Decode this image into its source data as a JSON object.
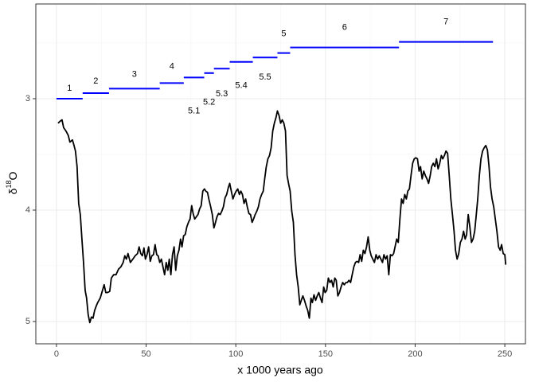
{
  "chart_data": {
    "type": "line",
    "x_label": "x 1000 years ago",
    "y_label": [
      "δ",
      "18",
      "O"
    ],
    "color": "#000000",
    "xlim": [
      -11.5,
      261.5
    ],
    "xticks": [
      0,
      50,
      100,
      150,
      200,
      250
    ],
    "ylim": [
      2.15,
      5.2
    ],
    "yticks": [
      3,
      4,
      5
    ],
    "y_reverse": true,
    "grid": true,
    "x": [
      0.9,
      2.2,
      3.1,
      4.0,
      5.3,
      6.6,
      7.5,
      8.9,
      9.8,
      10.6,
      11.5,
      12.4,
      13.3,
      14.2,
      15.1,
      16.0,
      16.8,
      17.7,
      18.6,
      19.5,
      20.4,
      21.3,
      22.2,
      23.0,
      24.4,
      25.7,
      26.6,
      27.5,
      28.4,
      29.7,
      30.6,
      31.9,
      33.2,
      34.6,
      35.9,
      37.2,
      38.1,
      39.0,
      39.9,
      41.2,
      42.6,
      43.9,
      45.2,
      46.1,
      47.0,
      47.9,
      48.8,
      49.6,
      50.5,
      51.4,
      52.3,
      53.2,
      54.1,
      55.0,
      55.9,
      56.7,
      57.6,
      58.5,
      59.4,
      60.3,
      61.2,
      62.1,
      62.9,
      63.8,
      64.7,
      65.6,
      66.5,
      67.4,
      68.3,
      69.2,
      70.0,
      70.9,
      71.8,
      72.7,
      73.6,
      74.5,
      75.4,
      76.2,
      77.1,
      78.0,
      78.9,
      79.8,
      80.7,
      81.6,
      82.5,
      83.3,
      84.2,
      85.1,
      86.0,
      86.9,
      87.8,
      88.7,
      89.5,
      90.4,
      91.3,
      92.2,
      93.1,
      94.0,
      94.9,
      95.8,
      96.6,
      97.5,
      98.4,
      99.3,
      100.2,
      101.1,
      102.0,
      102.8,
      103.7,
      104.6,
      105.5,
      106.4,
      107.3,
      108.2,
      109.1,
      109.9,
      110.8,
      111.7,
      112.6,
      113.5,
      114.4,
      115.3,
      116.1,
      117.0,
      117.9,
      118.8,
      119.7,
      120.6,
      121.5,
      122.4,
      123.2,
      124.1,
      125.0,
      125.9,
      126.8,
      127.7,
      128.6,
      129.4,
      130.3,
      131.2,
      132.1,
      133.0,
      133.9,
      134.8,
      135.7,
      136.5,
      137.4,
      138.3,
      139.2,
      140.1,
      141.0,
      141.9,
      142.7,
      143.6,
      144.5,
      145.4,
      146.3,
      147.2,
      148.1,
      149.0,
      149.8,
      150.7,
      151.6,
      152.5,
      153.4,
      154.3,
      155.2,
      156.0,
      156.9,
      157.8,
      158.7,
      159.6,
      160.5,
      161.4,
      162.2,
      163.1,
      164.0,
      164.9,
      165.8,
      166.7,
      167.6,
      168.5,
      169.3,
      170.2,
      171.1,
      172.0,
      172.9,
      173.8,
      174.7,
      175.5,
      176.4,
      177.3,
      178.2,
      179.1,
      180.0,
      180.9,
      181.8,
      182.6,
      183.5,
      184.4,
      185.3,
      186.2,
      187.1,
      188.0,
      188.8,
      189.7,
      190.6,
      191.5,
      192.4,
      193.3,
      194.2,
      195.1,
      195.9,
      196.8,
      197.7,
      198.6,
      199.5,
      200.4,
      201.3,
      202.2,
      203.0,
      203.9,
      204.8,
      205.7,
      206.6,
      207.5,
      208.4,
      209.2,
      210.1,
      211.0,
      211.9,
      212.8,
      213.7,
      214.6,
      215.4,
      216.3,
      217.2,
      218.1,
      219.0,
      219.9,
      220.8,
      221.7,
      222.5,
      223.4,
      224.3,
      225.2,
      226.1,
      227.0,
      227.9,
      228.7,
      229.6,
      230.5,
      231.4,
      232.3,
      233.2,
      234.1,
      234.9,
      235.8,
      236.7,
      237.6,
      238.5,
      239.4,
      240.3,
      241.2,
      242.0,
      242.9,
      243.8,
      244.7,
      245.6,
      246.5,
      247.4,
      248.2,
      249.1,
      250.0,
      250.5
    ],
    "values": [
      3.22,
      3.2,
      3.19,
      3.26,
      3.29,
      3.33,
      3.39,
      3.37,
      3.42,
      3.47,
      3.61,
      3.94,
      4.04,
      4.26,
      4.47,
      4.72,
      4.79,
      4.94,
      5.01,
      4.96,
      4.97,
      4.9,
      4.86,
      4.83,
      4.79,
      4.72,
      4.67,
      4.74,
      4.74,
      4.73,
      4.61,
      4.58,
      4.58,
      4.53,
      4.51,
      4.47,
      4.41,
      4.44,
      4.39,
      4.47,
      4.44,
      4.41,
      4.39,
      4.33,
      4.39,
      4.41,
      4.34,
      4.44,
      4.4,
      4.33,
      4.46,
      4.41,
      4.4,
      4.31,
      4.4,
      4.41,
      4.47,
      4.44,
      4.51,
      4.58,
      4.47,
      4.54,
      4.44,
      4.58,
      4.4,
      4.33,
      4.54,
      4.41,
      4.36,
      4.26,
      4.33,
      4.23,
      4.22,
      4.15,
      4.11,
      4.08,
      3.96,
      4.03,
      4.08,
      4.06,
      4.04,
      3.99,
      3.96,
      3.83,
      3.81,
      3.83,
      3.84,
      3.91,
      3.97,
      4.04,
      4.16,
      4.11,
      4.06,
      4.03,
      4.04,
      4.01,
      3.97,
      3.89,
      3.86,
      3.8,
      3.76,
      3.83,
      3.9,
      3.86,
      3.83,
      3.81,
      3.86,
      3.83,
      3.86,
      3.94,
      3.9,
      3.97,
      4.03,
      4.04,
      4.11,
      4.08,
      4.04,
      4.01,
      3.97,
      3.9,
      3.86,
      3.83,
      3.72,
      3.61,
      3.54,
      3.51,
      3.44,
      3.29,
      3.22,
      3.17,
      3.11,
      3.15,
      3.22,
      3.19,
      3.22,
      3.29,
      3.69,
      3.76,
      3.83,
      4.01,
      4.11,
      4.4,
      4.58,
      4.69,
      4.85,
      4.81,
      4.77,
      4.81,
      4.86,
      4.9,
      4.97,
      4.79,
      4.83,
      4.76,
      4.81,
      4.77,
      4.74,
      4.79,
      4.83,
      4.69,
      4.74,
      4.72,
      4.61,
      4.65,
      4.63,
      4.69,
      4.61,
      4.63,
      4.77,
      4.74,
      4.69,
      4.65,
      4.67,
      4.65,
      4.65,
      4.63,
      4.65,
      4.58,
      4.51,
      4.47,
      4.46,
      4.47,
      4.4,
      4.46,
      4.36,
      4.39,
      4.33,
      4.24,
      4.36,
      4.41,
      4.44,
      4.47,
      4.4,
      4.44,
      4.41,
      4.44,
      4.47,
      4.4,
      4.44,
      4.41,
      4.58,
      4.4,
      4.41,
      4.39,
      4.33,
      4.26,
      4.29,
      4.08,
      3.9,
      3.94,
      3.86,
      3.9,
      3.83,
      3.81,
      3.69,
      3.58,
      3.54,
      3.53,
      3.54,
      3.65,
      3.61,
      3.72,
      3.65,
      3.69,
      3.72,
      3.76,
      3.69,
      3.61,
      3.58,
      3.61,
      3.54,
      3.63,
      3.58,
      3.51,
      3.54,
      3.51,
      3.47,
      3.49,
      3.69,
      3.9,
      4.04,
      4.19,
      4.36,
      4.44,
      4.39,
      4.29,
      4.26,
      4.19,
      4.26,
      4.22,
      4.04,
      4.15,
      4.29,
      4.26,
      4.19,
      4.04,
      3.9,
      3.69,
      3.54,
      3.47,
      3.44,
      3.42,
      3.46,
      3.61,
      3.79,
      3.9,
      3.97,
      4.08,
      4.19,
      4.33,
      4.36,
      4.31,
      4.39,
      4.4,
      4.49
    ],
    "stage_color": "#0000ff",
    "stages": [
      {
        "label": "1",
        "start": 0,
        "end": 14.6,
        "value": 3.0
      },
      {
        "label": "2",
        "start": 14.6,
        "end": 29.3,
        "value": 2.95
      },
      {
        "label": "3",
        "start": 29.3,
        "end": 57.6,
        "value": 2.91
      },
      {
        "label": "4",
        "start": 57.6,
        "end": 71,
        "value": 2.86
      },
      {
        "label": "5.1",
        "start": 71,
        "end": 82.4,
        "value": 2.81
      },
      {
        "label": "5.2",
        "start": 82.4,
        "end": 87.8,
        "value": 2.77
      },
      {
        "label": "5.3",
        "start": 87.8,
        "end": 96.6,
        "value": 2.73
      },
      {
        "label": "5.4",
        "start": 96.6,
        "end": 109.5,
        "value": 2.67
      },
      {
        "label": "5.5",
        "start": 109.5,
        "end": 123.2,
        "value": 2.63
      },
      {
        "label": "5",
        "start": 123.2,
        "end": 130.3,
        "value": 2.59
      },
      {
        "label": "6",
        "start": 130.3,
        "end": 191,
        "value": 2.54
      },
      {
        "label": "7",
        "start": 191,
        "end": 243.4,
        "value": 2.49
      }
    ]
  }
}
